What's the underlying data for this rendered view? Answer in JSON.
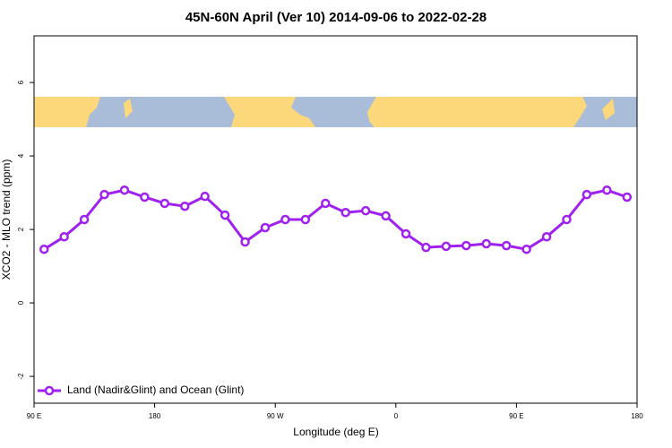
{
  "chart_data": {
    "type": "line",
    "title": "45N-60N April (Ver 10)   2014-09-06 to 2022-02-28",
    "x_label": "Longitude (deg E)",
    "y_label": "XCO2 - MLO trend (ppm)",
    "x": [
      97.5,
      112.5,
      127.5,
      142.5,
      157.5,
      172.5,
      187.5,
      202.5,
      217.5,
      232.5,
      247.5,
      262.5,
      277.5,
      292.5,
      307.5,
      322.5,
      337.5,
      352.5,
      367.5,
      382.5,
      397.5,
      412.5,
      427.5,
      442.5,
      457.5,
      472.5,
      487.5,
      502.5,
      517.5,
      532.5
    ],
    "series": [
      {
        "name": "Land (Nadir&Glint) and Ocean (Glint)",
        "color": "#a020f0",
        "values": [
          1.46,
          1.8,
          2.27,
          2.95,
          3.07,
          2.88,
          2.71,
          2.63,
          2.9,
          2.39,
          1.66,
          2.05,
          2.27,
          2.27,
          2.71,
          2.46,
          2.51,
          2.37,
          1.88,
          1.51,
          1.54,
          1.56,
          1.61,
          1.56,
          1.46,
          1.8,
          2.27,
          2.95,
          3.07,
          2.88
        ]
      }
    ],
    "xlim": [
      90,
      540
    ],
    "xticks": [
      {
        "value": 90,
        "label": "90 E"
      },
      {
        "value": 180,
        "label": "180"
      },
      {
        "value": 270,
        "label": "90 W"
      },
      {
        "value": 360,
        "label": "0"
      },
      {
        "value": 450,
        "label": "90 E"
      },
      {
        "value": 540,
        "label": "180"
      }
    ],
    "ylim": [
      -2.73,
      7.27
    ],
    "yticks": [
      -2,
      0,
      2,
      4,
      6
    ],
    "legend": "bottom-left"
  }
}
